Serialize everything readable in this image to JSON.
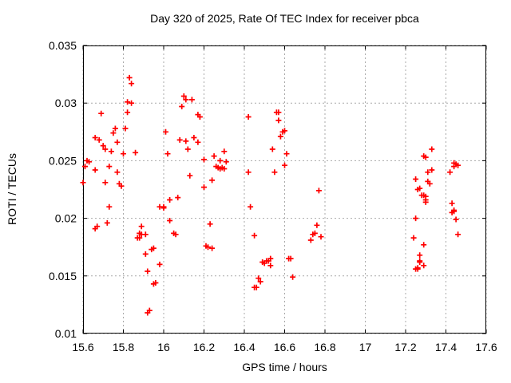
{
  "window": {
    "background": "#ffffff"
  },
  "chart_data": {
    "type": "scatter",
    "title": "Day 320 of 2025, Rate Of TEC Index for receiver pbca",
    "xlabel": "GPS time / hours",
    "ylabel": "ROTI / TECUs",
    "xlim": [
      15.6,
      17.6
    ],
    "ylim": [
      0.01,
      0.035
    ],
    "xticks": [
      15.6,
      15.8,
      16,
      16.2,
      16.4,
      16.6,
      16.8,
      17,
      17.2,
      17.4,
      17.6
    ],
    "yticks": [
      0.01,
      0.015,
      0.02,
      0.025,
      0.03,
      0.035
    ],
    "grid": true,
    "legend": "none",
    "axis_color": "#000000",
    "grid_color": "#a9a9a9",
    "series": [
      {
        "name": "ROTI",
        "marker": "plus",
        "color": "#ff0000",
        "points": [
          [
            15.6,
            0.0231
          ],
          [
            15.61,
            0.0245
          ],
          [
            15.62,
            0.025
          ],
          [
            15.63,
            0.0249
          ],
          [
            15.66,
            0.027
          ],
          [
            15.66,
            0.0242
          ],
          [
            15.66,
            0.0191
          ],
          [
            15.67,
            0.0193
          ],
          [
            15.68,
            0.0268
          ],
          [
            15.69,
            0.0291
          ],
          [
            15.7,
            0.0263
          ],
          [
            15.71,
            0.026
          ],
          [
            15.71,
            0.0231
          ],
          [
            15.72,
            0.0196
          ],
          [
            15.73,
            0.0245
          ],
          [
            15.73,
            0.021
          ],
          [
            15.74,
            0.0258
          ],
          [
            15.75,
            0.0274
          ],
          [
            15.76,
            0.0278
          ],
          [
            15.77,
            0.0266
          ],
          [
            15.77,
            0.024
          ],
          [
            15.78,
            0.023
          ],
          [
            15.79,
            0.0228
          ],
          [
            15.8,
            0.0256
          ],
          [
            15.81,
            0.0278
          ],
          [
            15.82,
            0.0301
          ],
          [
            15.82,
            0.0292
          ],
          [
            15.83,
            0.0322
          ],
          [
            15.84,
            0.0317
          ],
          [
            15.84,
            0.03
          ],
          [
            15.86,
            0.0257
          ],
          [
            15.87,
            0.0183
          ],
          [
            15.88,
            0.0187
          ],
          [
            15.88,
            0.0183
          ],
          [
            15.89,
            0.0193
          ],
          [
            15.89,
            0.0186
          ],
          [
            15.91,
            0.0186
          ],
          [
            15.91,
            0.0169
          ],
          [
            15.92,
            0.0154
          ],
          [
            15.92,
            0.0118
          ],
          [
            15.93,
            0.012
          ],
          [
            15.94,
            0.0173
          ],
          [
            15.95,
            0.0174
          ],
          [
            15.95,
            0.0143
          ],
          [
            15.96,
            0.0144
          ],
          [
            15.98,
            0.021
          ],
          [
            15.98,
            0.016
          ],
          [
            16.0,
            0.021
          ],
          [
            16.0,
            0.0209
          ],
          [
            16.01,
            0.0275
          ],
          [
            16.02,
            0.0256
          ],
          [
            16.03,
            0.0216
          ],
          [
            16.03,
            0.0198
          ],
          [
            16.05,
            0.0187
          ],
          [
            16.06,
            0.0186
          ],
          [
            16.07,
            0.0218
          ],
          [
            16.08,
            0.0268
          ],
          [
            16.09,
            0.0297
          ],
          [
            16.1,
            0.0306
          ],
          [
            16.11,
            0.0303
          ],
          [
            16.11,
            0.0267
          ],
          [
            16.12,
            0.026
          ],
          [
            16.13,
            0.0237
          ],
          [
            16.14,
            0.0303
          ],
          [
            16.15,
            0.027
          ],
          [
            16.17,
            0.029
          ],
          [
            16.17,
            0.0266
          ],
          [
            16.18,
            0.0288
          ],
          [
            16.2,
            0.0251
          ],
          [
            16.2,
            0.0227
          ],
          [
            16.21,
            0.0176
          ],
          [
            16.22,
            0.0175
          ],
          [
            16.23,
            0.0195
          ],
          [
            16.24,
            0.0174
          ],
          [
            16.24,
            0.0233
          ],
          [
            16.25,
            0.0254
          ],
          [
            16.26,
            0.0245
          ],
          [
            16.27,
            0.0244
          ],
          [
            16.28,
            0.025
          ],
          [
            16.28,
            0.0243
          ],
          [
            16.29,
            0.0244
          ],
          [
            16.3,
            0.0258
          ],
          [
            16.3,
            0.0243
          ],
          [
            16.31,
            0.0249
          ],
          [
            16.42,
            0.0288
          ],
          [
            16.42,
            0.024
          ],
          [
            16.43,
            0.021
          ],
          [
            16.45,
            0.0185
          ],
          [
            16.45,
            0.014
          ],
          [
            16.46,
            0.014
          ],
          [
            16.47,
            0.0148
          ],
          [
            16.48,
            0.0145
          ],
          [
            16.49,
            0.0162
          ],
          [
            16.5,
            0.0161
          ],
          [
            16.51,
            0.0163
          ],
          [
            16.52,
            0.0163
          ],
          [
            16.53,
            0.0165
          ],
          [
            16.53,
            0.0159
          ],
          [
            16.54,
            0.026
          ],
          [
            16.55,
            0.024
          ],
          [
            16.56,
            0.0292
          ],
          [
            16.57,
            0.0292
          ],
          [
            16.57,
            0.0285
          ],
          [
            16.58,
            0.0271
          ],
          [
            16.59,
            0.0275
          ],
          [
            16.6,
            0.0276
          ],
          [
            16.6,
            0.0246
          ],
          [
            16.61,
            0.0256
          ],
          [
            16.62,
            0.0165
          ],
          [
            16.63,
            0.0165
          ],
          [
            16.64,
            0.0149
          ],
          [
            16.73,
            0.0181
          ],
          [
            16.74,
            0.0186
          ],
          [
            16.75,
            0.0187
          ],
          [
            16.76,
            0.0194
          ],
          [
            16.77,
            0.0224
          ],
          [
            16.78,
            0.0184
          ],
          [
            17.24,
            0.0183
          ],
          [
            17.25,
            0.0234
          ],
          [
            17.25,
            0.02
          ],
          [
            17.25,
            0.0156
          ],
          [
            17.26,
            0.0225
          ],
          [
            17.26,
            0.0157
          ],
          [
            17.26,
            0.0156
          ],
          [
            17.27,
            0.0226
          ],
          [
            17.27,
            0.0168
          ],
          [
            17.27,
            0.0163
          ],
          [
            17.27,
            0.0162
          ],
          [
            17.28,
            0.022
          ],
          [
            17.29,
            0.0254
          ],
          [
            17.29,
            0.022
          ],
          [
            17.29,
            0.0177
          ],
          [
            17.29,
            0.0159
          ],
          [
            17.3,
            0.0253
          ],
          [
            17.3,
            0.0219
          ],
          [
            17.3,
            0.0216
          ],
          [
            17.3,
            0.0214
          ],
          [
            17.31,
            0.024
          ],
          [
            17.31,
            0.0232
          ],
          [
            17.32,
            0.023
          ],
          [
            17.33,
            0.026
          ],
          [
            17.33,
            0.0242
          ],
          [
            17.42,
            0.024
          ],
          [
            17.43,
            0.0213
          ],
          [
            17.43,
            0.0205
          ],
          [
            17.44,
            0.0248
          ],
          [
            17.44,
            0.0245
          ],
          [
            17.44,
            0.0207
          ],
          [
            17.44,
            0.0206
          ],
          [
            17.45,
            0.0247
          ],
          [
            17.45,
            0.0199
          ],
          [
            17.46,
            0.0246
          ],
          [
            17.46,
            0.0186
          ]
        ]
      }
    ]
  }
}
